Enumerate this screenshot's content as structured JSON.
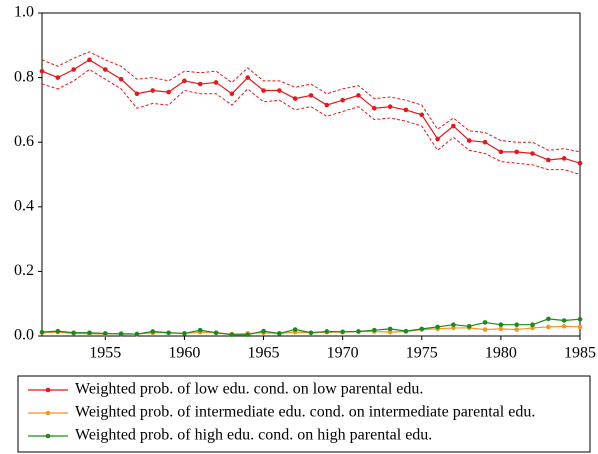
{
  "chart_data": {
    "type": "line",
    "x": [
      1951,
      1952,
      1953,
      1954,
      1955,
      1956,
      1957,
      1958,
      1959,
      1960,
      1961,
      1962,
      1963,
      1964,
      1965,
      1966,
      1967,
      1968,
      1969,
      1970,
      1971,
      1972,
      1973,
      1974,
      1975,
      1976,
      1977,
      1978,
      1979,
      1980,
      1981,
      1982,
      1983,
      1984,
      1985
    ],
    "xlim": [
      1951,
      1985
    ],
    "xticks": [
      1955,
      1960,
      1965,
      1970,
      1975,
      1980,
      1985
    ],
    "ylim": [
      0,
      1
    ],
    "yticks": [
      {
        "value": 0,
        "label": "0.0"
      },
      0.2,
      0.4,
      0.6,
      0.8,
      {
        "value": 1,
        "label": "1.0"
      }
    ],
    "series": [
      {
        "name": "Weighted prob. of low edu. cond. on low parental edu.",
        "color": "#e8161b",
        "values": [
          0.82,
          0.8,
          0.825,
          0.855,
          0.825,
          0.795,
          0.75,
          0.76,
          0.755,
          0.79,
          0.78,
          0.785,
          0.75,
          0.8,
          0.76,
          0.76,
          0.735,
          0.745,
          0.715,
          0.73,
          0.745,
          0.705,
          0.71,
          0.7,
          0.685,
          0.61,
          0.65,
          0.605,
          0.6,
          0.57,
          0.57,
          0.565,
          0.545,
          0.55,
          0.535
        ],
        "ci_upper": [
          0.855,
          0.835,
          0.86,
          0.88,
          0.855,
          0.835,
          0.795,
          0.8,
          0.79,
          0.82,
          0.815,
          0.82,
          0.785,
          0.83,
          0.79,
          0.79,
          0.77,
          0.78,
          0.75,
          0.765,
          0.775,
          0.735,
          0.74,
          0.73,
          0.715,
          0.64,
          0.675,
          0.635,
          0.63,
          0.605,
          0.6,
          0.6,
          0.575,
          0.58,
          0.57
        ],
        "ci_lower": [
          0.78,
          0.765,
          0.79,
          0.825,
          0.795,
          0.765,
          0.705,
          0.72,
          0.715,
          0.76,
          0.75,
          0.75,
          0.715,
          0.765,
          0.725,
          0.73,
          0.7,
          0.71,
          0.68,
          0.695,
          0.71,
          0.67,
          0.675,
          0.665,
          0.65,
          0.575,
          0.615,
          0.575,
          0.565,
          0.54,
          0.535,
          0.53,
          0.515,
          0.515,
          0.5
        ]
      },
      {
        "name": "Weighted prob. of intermediate edu. cond. on intermediate parental edu.",
        "color": "#f7941d",
        "values": [
          0.01,
          0.012,
          0.008,
          0.007,
          0.006,
          0.008,
          0.006,
          0.01,
          0.01,
          0.008,
          0.012,
          0.01,
          0.006,
          0.008,
          0.01,
          0.008,
          0.012,
          0.01,
          0.012,
          0.012,
          0.014,
          0.014,
          0.012,
          0.014,
          0.02,
          0.022,
          0.025,
          0.025,
          0.02,
          0.022,
          0.02,
          0.025,
          0.028,
          0.03,
          0.028
        ]
      },
      {
        "name": "Weighted prob. of high edu. cond. on high parental edu.",
        "color": "#1a8a1a",
        "values": [
          0.012,
          0.015,
          0.01,
          0.01,
          0.008,
          0.006,
          0.006,
          0.014,
          0.01,
          0.008,
          0.018,
          0.01,
          0.004,
          0.004,
          0.015,
          0.008,
          0.02,
          0.01,
          0.014,
          0.013,
          0.014,
          0.018,
          0.022,
          0.015,
          0.022,
          0.028,
          0.035,
          0.03,
          0.042,
          0.035,
          0.035,
          0.035,
          0.053,
          0.048,
          0.052
        ]
      }
    ]
  }
}
